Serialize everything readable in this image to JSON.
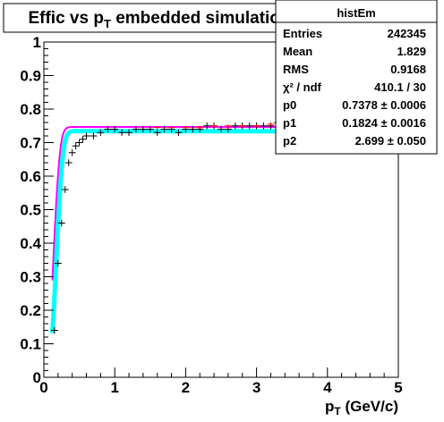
{
  "chart_data": {
    "type": "scatter",
    "title_prefix": "Effic vs p",
    "title_sub": "T",
    "title_suffix": " embedded simulation",
    "xlabel_main": "p",
    "xlabel_sub": "T",
    "xlabel_suffix": " (GeV/c)",
    "ylabel": "",
    "xlim": [
      0,
      5
    ],
    "ylim": [
      0,
      1
    ],
    "xticks": [
      "0",
      "1",
      "2",
      "3",
      "4",
      "5"
    ],
    "yticks": [
      "0",
      "0.1",
      "0.2",
      "0.3",
      "0.4",
      "0.5",
      "0.6",
      "0.7",
      "0.8",
      "0.9",
      "1"
    ],
    "grid": false,
    "stats_box": {
      "name": "histEm",
      "rows": [
        {
          "label": "Entries",
          "value": "242345"
        },
        {
          "label": "Mean",
          "value": "1.829"
        },
        {
          "label": "RMS",
          "value": "0.9168"
        },
        {
          "label": "χ² / ndf",
          "value": "410.1 / 30"
        },
        {
          "label": "p0",
          "value": "0.7378 ± 0.0006"
        },
        {
          "label": "p1",
          "value": "0.1824 ± 0.0016"
        },
        {
          "label": "p2",
          "value": "2.699 ± 0.050"
        }
      ]
    },
    "series": [
      {
        "color": "#000000",
        "style": "points-with-error-bars",
        "x": [
          0.15,
          0.2,
          0.25,
          0.3,
          0.35,
          0.4,
          0.45,
          0.5,
          0.55,
          0.6,
          0.7,
          0.8,
          0.9,
          1.0,
          1.1,
          1.2,
          1.3,
          1.4,
          1.5,
          1.6,
          1.7,
          1.8,
          1.9,
          2.0,
          2.1,
          2.2,
          2.3,
          2.4,
          2.5,
          2.6,
          2.7,
          2.8,
          2.9,
          3.0,
          3.1,
          3.2,
          3.3,
          3.4,
          3.5,
          3.6,
          3.7,
          3.8,
          3.9
        ],
        "y": [
          0.14,
          0.34,
          0.46,
          0.56,
          0.64,
          0.67,
          0.69,
          0.7,
          0.71,
          0.72,
          0.72,
          0.73,
          0.74,
          0.74,
          0.73,
          0.73,
          0.74,
          0.74,
          0.74,
          0.73,
          0.74,
          0.74,
          0.73,
          0.74,
          0.74,
          0.74,
          0.75,
          0.75,
          0.74,
          0.74,
          0.75,
          0.75,
          0.75,
          0.75,
          0.75,
          0.75,
          0.76,
          0.76,
          0.76,
          0.76,
          0.76,
          0.75,
          0.75
        ],
        "xerr": 0.05,
        "yerr": 0.01
      },
      {
        "color": "#ff0000",
        "style": "points",
        "x": [
          1.6,
          1.8,
          2.0,
          2.2,
          2.4,
          2.6,
          2.8,
          3.0,
          3.2,
          3.4,
          3.6,
          3.8
        ],
        "y": [
          0.745,
          0.745,
          0.745,
          0.745,
          0.75,
          0.75,
          0.75,
          0.75,
          0.755,
          0.755,
          0.755,
          0.75
        ],
        "xerr": 0.05,
        "yerr": 0.004
      },
      {
        "color": "#ff00ff",
        "style": "line",
        "line_width": 2,
        "fit": {
          "p0": 0.7378,
          "p1": 0.1824,
          "p2": 2.699,
          "x_shift": -0.02,
          "y_scale": 1.012
        },
        "x_range": [
          0.12,
          3.95
        ]
      },
      {
        "color": "#00ffff",
        "style": "line",
        "line_width": 5,
        "fit": {
          "p0": 0.7378,
          "p1": 0.1824,
          "p2": 2.699,
          "x_shift": 0.02,
          "y_scale": 0.995
        },
        "x_range": [
          0.12,
          3.95
        ]
      }
    ]
  }
}
